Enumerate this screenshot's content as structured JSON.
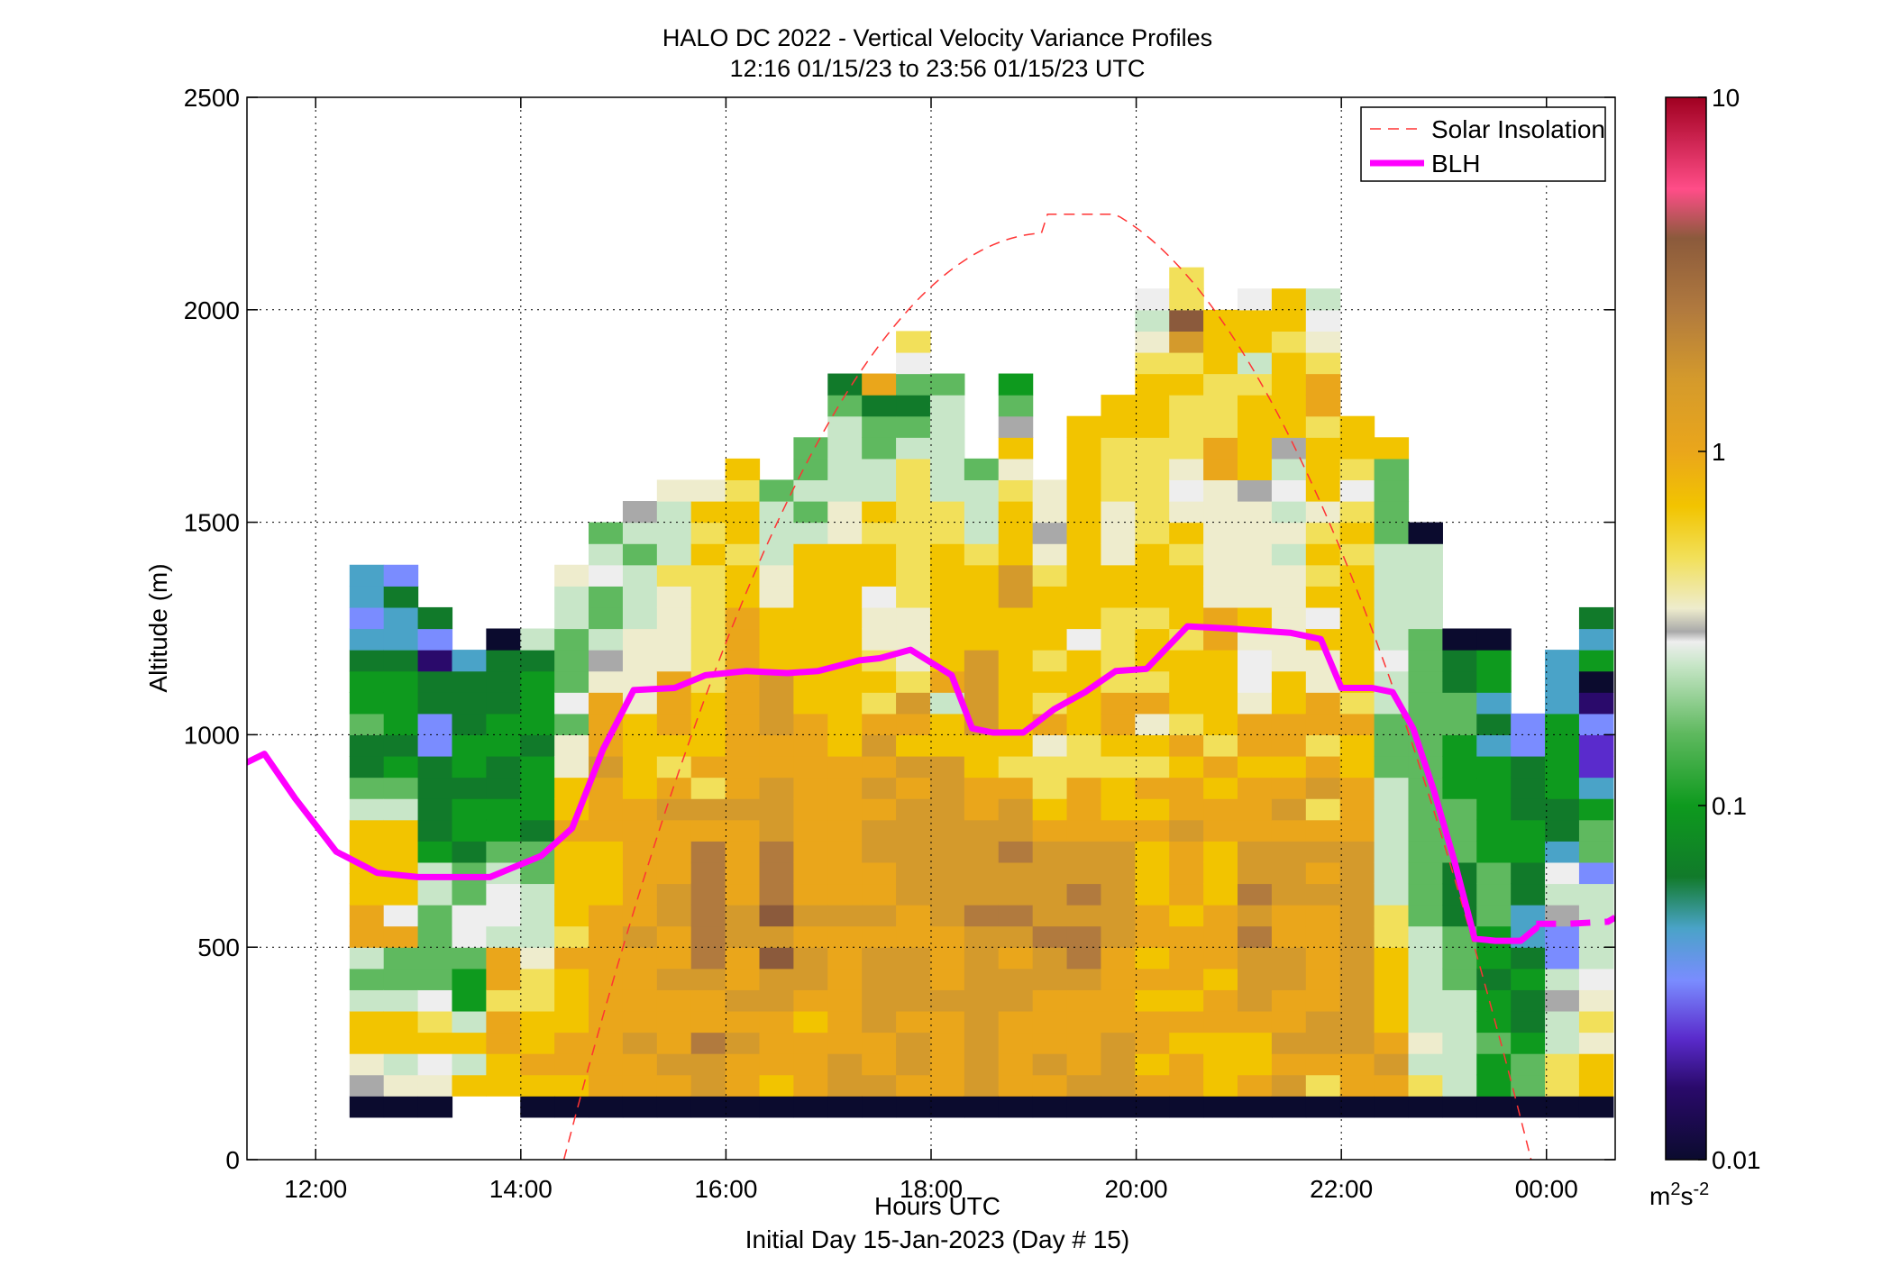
{
  "chart_data": {
    "type": "heatmap",
    "title": "HALO DC 2022 - Vertical Velocity Variance Profiles",
    "subtitle": "12:16 01/15/23 to 23:56 01/15/23  UTC",
    "xlabel": "Hours UTC",
    "xlabel2": "Initial Day 15-Jan-2023 (Day # 15)",
    "ylabel": "Altitude (m)",
    "xlim": [
      11.33,
      24.67
    ],
    "ylim": [
      0,
      2500
    ],
    "x_ticks": [
      {
        "value": 12,
        "label": "12:00"
      },
      {
        "value": 14,
        "label": "14:00"
      },
      {
        "value": 16,
        "label": "16:00"
      },
      {
        "value": 18,
        "label": "18:00"
      },
      {
        "value": 20,
        "label": "20:00"
      },
      {
        "value": 22,
        "label": "22:00"
      },
      {
        "value": 24,
        "label": "00:00"
      }
    ],
    "y_ticks": [
      {
        "value": 0,
        "label": "0"
      },
      {
        "value": 500,
        "label": "500"
      },
      {
        "value": 1000,
        "label": "1000"
      },
      {
        "value": 1500,
        "label": "1500"
      },
      {
        "value": 2000,
        "label": "2000"
      },
      {
        "value": 2500,
        "label": "2500"
      }
    ],
    "grid": "dotted",
    "legend": {
      "placement": "top-right",
      "entries": [
        {
          "name": "Solar Insolation",
          "style": "dashed",
          "color": "#ff3333"
        },
        {
          "name": "BLH",
          "style": "solid",
          "color": "#ff00ff"
        }
      ]
    },
    "colorbar": {
      "scale": "log",
      "range": [
        0.01,
        10
      ],
      "ticks": [
        {
          "value": 0.01,
          "label": "0.01"
        },
        {
          "value": 0.1,
          "label": "0.1"
        },
        {
          "value": 1,
          "label": "1"
        },
        {
          "value": 10,
          "label": "10"
        }
      ],
      "unit_base": "m",
      "unit_exp1": "2",
      "unit_mid": "s",
      "unit_exp2": "-2",
      "stops": [
        {
          "value": 0.01,
          "color": "#0b0b2e"
        },
        {
          "value": 0.016,
          "color": "#2a0a6b"
        },
        {
          "value": 0.022,
          "color": "#5a2bcc"
        },
        {
          "value": 0.032,
          "color": "#7a8cff"
        },
        {
          "value": 0.045,
          "color": "#4aa3c8"
        },
        {
          "value": 0.063,
          "color": "#117a2a"
        },
        {
          "value": 0.1,
          "color": "#0e9a1e"
        },
        {
          "value": 0.16,
          "color": "#5fb95f"
        },
        {
          "value": 0.25,
          "color": "#c8e6c8"
        },
        {
          "value": 0.29,
          "color": "#eeeeee"
        },
        {
          "value": 0.31,
          "color": "#a9a9a9"
        },
        {
          "value": 0.36,
          "color": "#eeeccd"
        },
        {
          "value": 0.5,
          "color": "#f2e05a"
        },
        {
          "value": 0.7,
          "color": "#f2c400"
        },
        {
          "value": 1.0,
          "color": "#eaa61b"
        },
        {
          "value": 1.6,
          "color": "#d49a2c"
        },
        {
          "value": 2.5,
          "color": "#b17a3e"
        },
        {
          "value": 4.0,
          "color": "#8b5a3c"
        },
        {
          "value": 5.5,
          "color": "#ff4d88"
        },
        {
          "value": 10,
          "color": "#a00020"
        }
      ]
    },
    "heatmap": {
      "x_start": 12.33,
      "x_step": 0.333,
      "y_start": 100,
      "y_step": 50,
      "palette": {
        "Z": "#0b0b2e",
        "V": "#2a0a6b",
        "U": "#5a2bcc",
        "B": "#7a8cff",
        "T": "#4aa3c8",
        "D": "#117a2a",
        "G": "#0e9a1e",
        "M": "#5fb95f",
        "L": "#c8e6c8",
        "W": "#eeeeee",
        "S": "#a9a9a9",
        "C": "#eeeccd",
        "P": "#f2e05a",
        "Y": "#f2c400",
        "O": "#eaa61b",
        "K": "#d49a2c",
        "N": "#b17a3e",
        "R": "#8b5a3c"
      },
      "columns": [
        "ZSCYYLMLOOYYYYLMDDMGGDTBTT",
        "ZCLYYLMMOWYYYYLMGDGGGDTTDB",
        "ZCWYPWMMMMLLGDDDDBBDDVBD",
        "-YLYLGGMWWMMDGGDGGDDDT",
        "-YYOOPOOLWWLMGGDDGGDDDZ",
        "ZYOYYPPCLLLMMDGGGDGGGDL",
        "ZYOOYYYOPYYYYOYYCCMWMMMLLC",
        "ZOOOOOOOOOYYYOOOKOOOCSLMMWLM",
        "ZOOKOOOOKOOOOOOYYYYCCCCLLLMLS",
        "ZOKOOOKOOKKOOOKOPYOOOCCCCPLLLC",
        "ZKKNOOKNNNNNNOKPOYYYPPPPPPYPYC",
        "ZOOKOKOOKKOOOOKOOOOOOOOOYYPYYPY",
        "ZYOOOKKRKRNNNKKKOOKKKYYYCCLLLM",
        "ZOOOYOKKOKOOOOOOOOOYYYYYYYYLMLMM",
        "ZKKOOOOOOKOOOOOOOYYYYYYYYYYCCLLLLMD",
        "ZKOOKKKKOKOOKKOKOKOPYPCCWYYPYLLMMDO",
        "ZOKKOKKKOOKKKKKOKYOKPCCCPPPPPPPLMDMWP",
        "ZOOOOKOOOKKKKKKKKYYLOYYYYYYPPLLLLLM",
        "ZKKKKKKKKNKKKKOOYYKKKKYYYYPLLLM",
        "ZOOOOKKOKNKKNKKOPYYYYYYYKKYYYPCYSMG",
        "ZOKOOOKKNKKKKOYPPCOPYPYYYPCSCC",
        "ZKOOOOKNNKNKKOOOPPYYYYWYYYYYYYYYY",
        "ZKKKOOOOKKKKKOYYPYOOPPPPYYCCCPPPYY",
        "ZOYOOYOYOOYYYOYOPYCOPYYPYYYPPPPPYYYPCLW",
        "ZOOYOYOOOYOOOKOOYOPYYYPYYYPYCWCPPPYPKRPP",
        "ZYYYOOYOOOYYYOOYOPYYYYOOCCCCCCOOPPPYYY",
        "ZOYYOKKKNKNKKOOOYOOCWWCYCCCCCSYYYYPLYYW",
        "ZKOKOOKKOOKKKOKOYOOYYCCCCCLCLWLSYYYYPYY",
        "ZPOKKOOOOOKOKOPKOPOOCCYWYPYPCYYYPOOPCWL",
        "ZOOKKKKKKKKKKOOOYYOPYYYYYYPYPWPYY",
        "ZOKOYYYYPPLLLLLLMMMLLWLLLLLMMMMY",
        "ZPLCLLLLLMMMMMMMMMMMMMMLLLLZ",
        "ZLLLLLMMMDDDMMMGGGMMDDZ",
        "ZGGMGGDGGMMMGGGGGTDTGGZ",
        "ZMMGDDGDTTDDGGDDDBB",
        "ZPPLLSLBBSLWTDDGGGGTTT",
        "ZYYCPCWLLLLBMMGTUUBVZGTD"
      ]
    },
    "blh": {
      "x": [
        11.33,
        11.5,
        11.8,
        12.2,
        12.6,
        13.0,
        13.3,
        13.7,
        14.2,
        14.5,
        14.8,
        15.1,
        15.5,
        15.8,
        16.2,
        16.6,
        16.9,
        17.3,
        17.5,
        17.8,
        18.2,
        18.4,
        18.6,
        18.9,
        19.2,
        19.5,
        19.8,
        20.1,
        20.5,
        20.9,
        21.2,
        21.5,
        21.8,
        22.0,
        22.3,
        22.5,
        22.7,
        22.9,
        23.1,
        23.3,
        23.5,
        23.75,
        23.9
      ],
      "y": [
        935,
        955,
        850,
        725,
        675,
        665,
        665,
        665,
        715,
        780,
        965,
        1105,
        1110,
        1140,
        1150,
        1145,
        1150,
        1175,
        1180,
        1200,
        1140,
        1015,
        1005,
        1005,
        1060,
        1100,
        1150,
        1155,
        1255,
        1250,
        1245,
        1240,
        1225,
        1110,
        1110,
        1100,
        1015,
        870,
        705,
        520,
        515,
        515,
        545
      ],
      "tail_x": [
        23.9,
        24.2,
        24.6,
        24.67
      ],
      "tail_y": [
        555,
        555,
        560,
        570
      ]
    },
    "solar": {
      "peak_x": 19.1,
      "peak_y": 2225,
      "start_x": 14.42,
      "end_x": 23.85
    }
  }
}
